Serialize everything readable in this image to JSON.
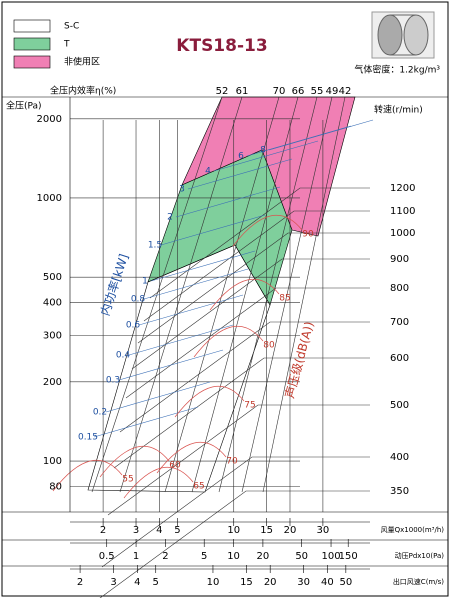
{
  "title": "KTS18-13",
  "density": "气体密度：1.2kg/m³",
  "legend": [
    {
      "label": "S-C",
      "color": "#ffffff"
    },
    {
      "label": "T",
      "color": "#7fcf9c"
    },
    {
      "label": "非使用区",
      "color": "#f07fb4"
    }
  ],
  "chart_data": {
    "type": "fan-curve",
    "efficiency_label": "全压内效率η(%)",
    "efficiency_ticks": [
      52,
      61,
      70,
      66,
      55,
      49,
      42
    ],
    "ylabel": "全压(Pa)",
    "log_scale": true,
    "ylim": [
      64,
      2420
    ],
    "yticks": [
      2000,
      1000,
      500,
      400,
      300,
      200,
      100,
      80
    ],
    "speed_label": "转速(r/min)",
    "speeds": [
      1200,
      1100,
      1000,
      900,
      800,
      700,
      600,
      500,
      400,
      350
    ],
    "power_label": "内功率[kW]",
    "power": [
      8,
      6,
      4,
      3,
      2,
      1.5,
      1,
      0.8,
      0.6,
      0.4,
      0.3,
      0.2,
      0.15
    ],
    "noise_label": "声压级(dB(A))",
    "noise": [
      90,
      85,
      80,
      75,
      70,
      65,
      60,
      55
    ],
    "x_axes": [
      {
        "label": "风量Qx1000(m³/h)",
        "xlim": [
          1.33,
          53.6
        ],
        "xticks": [
          2,
          3,
          4,
          5,
          10,
          15,
          20,
          30
        ]
      },
      {
        "label": "动压Pdx10(Pa)",
        "xlim": [
          0.21,
          251
        ],
        "xticks": [
          0.5,
          1,
          2,
          5,
          10,
          20,
          50,
          100,
          150
        ]
      },
      {
        "label": "出口风速C(m/s)",
        "xlim": [
          1.77,
          67
        ],
        "xticks": [
          2,
          3,
          4,
          5,
          10,
          15,
          20,
          30,
          40,
          50
        ]
      }
    ]
  }
}
